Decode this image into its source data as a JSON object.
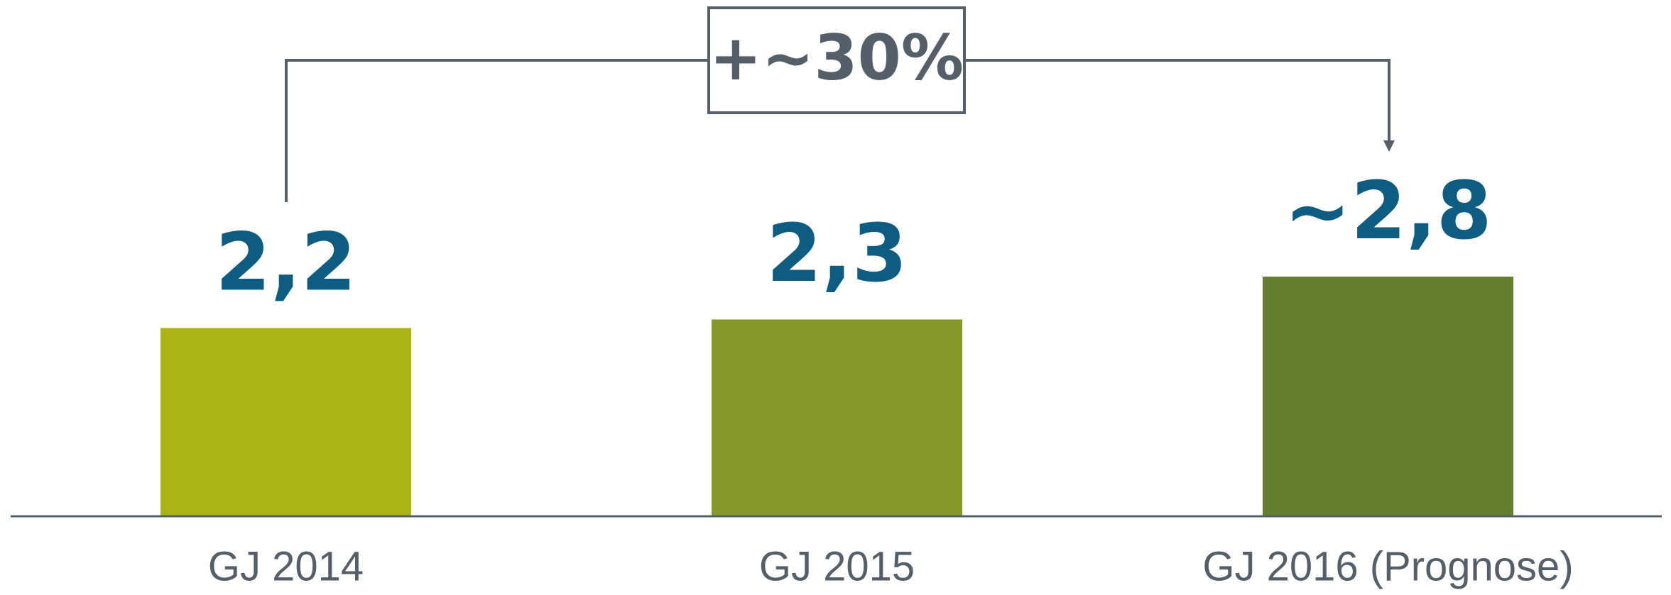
{
  "chart_data": {
    "type": "bar",
    "categories": [
      "GJ 2014",
      "GJ 2015",
      "GJ 2016 (Prognose)"
    ],
    "values": [
      2.2,
      2.3,
      2.8
    ],
    "value_labels": [
      "2,2",
      "2,3",
      "~2,8"
    ],
    "colors": [
      "#aab515",
      "#87982a",
      "#647d2e"
    ],
    "ylim": [
      0,
      6
    ],
    "annotation": "+~30%"
  }
}
